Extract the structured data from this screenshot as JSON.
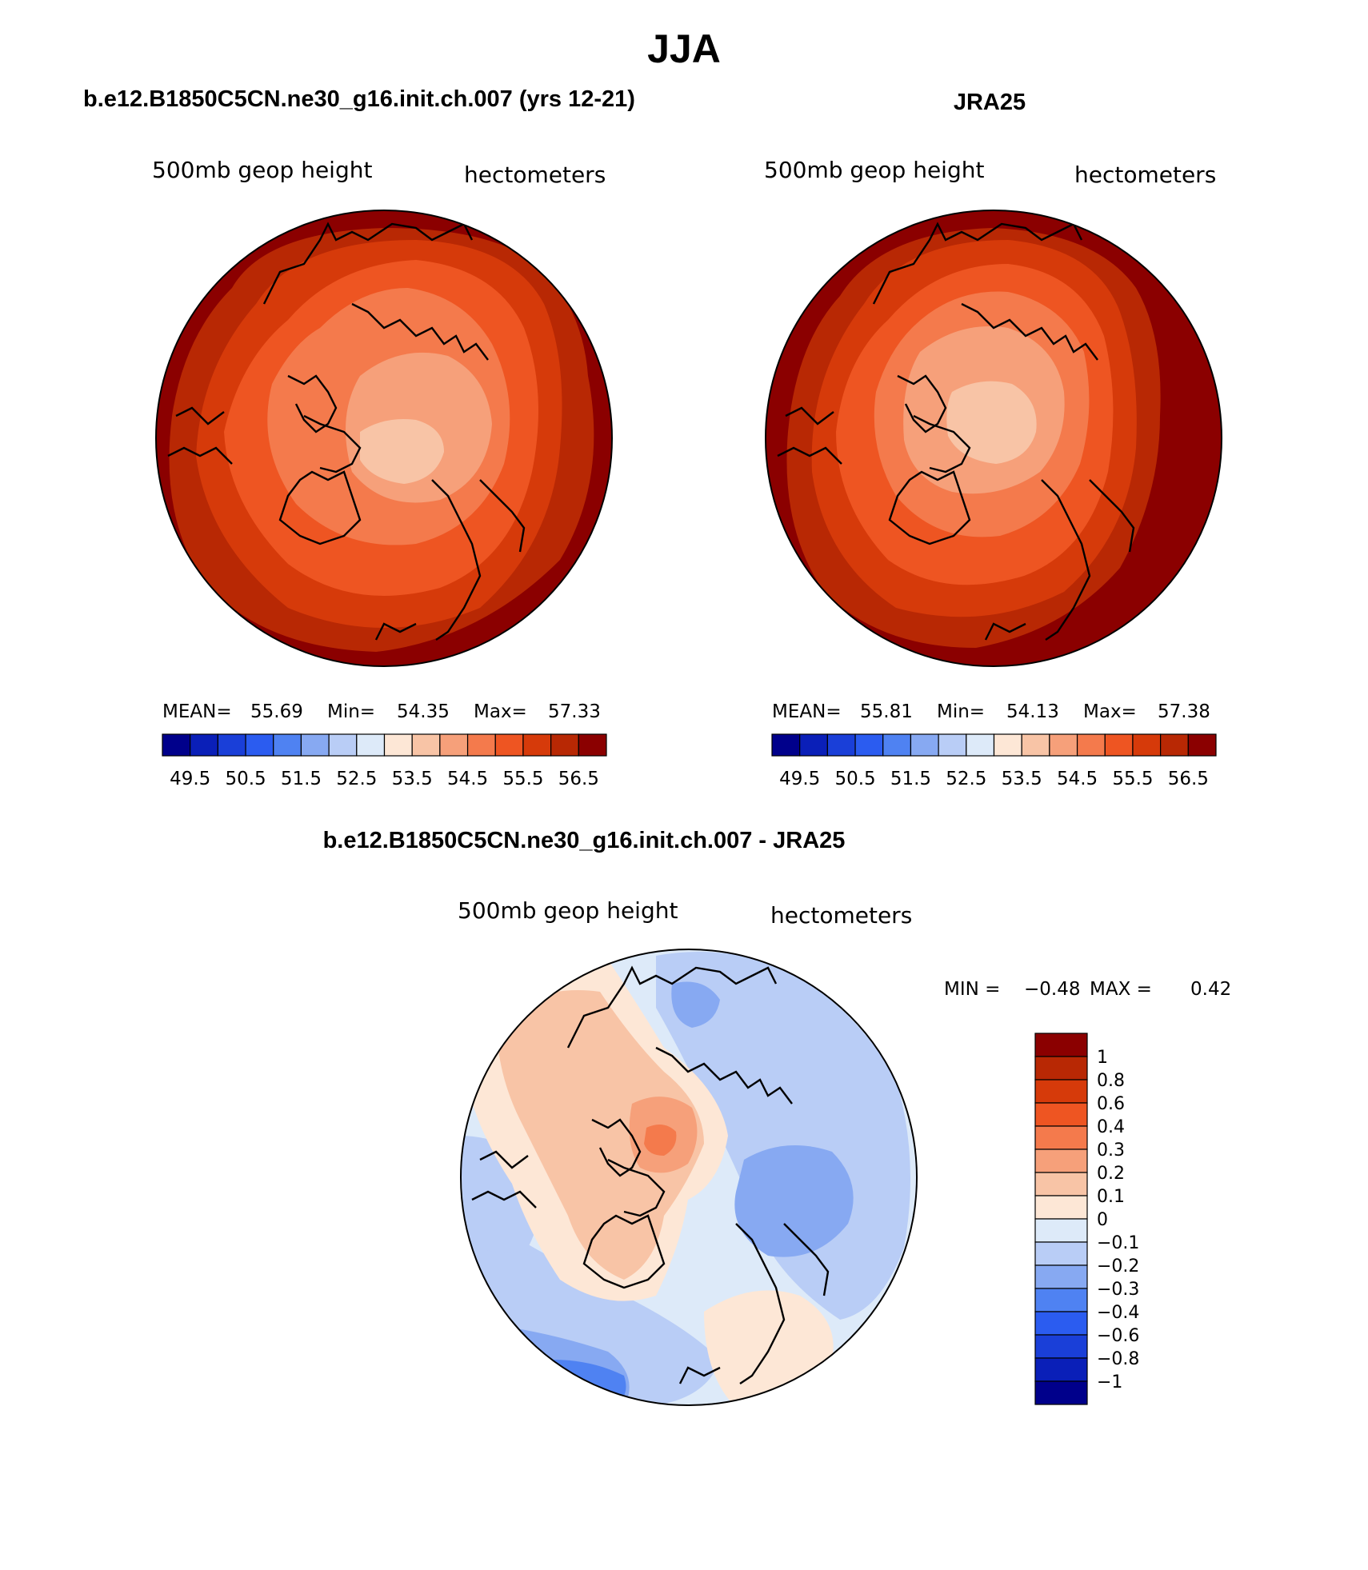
{
  "title": "JJA",
  "panels": [
    {
      "id": "model",
      "header": "b.e12.B1850C5CN.ne30_g16.init.ch.007 (yrs 12-21)",
      "variable": "500mb geop height",
      "units": "hectometers",
      "stats_text": {
        "mean_label": "MEAN=",
        "mean": "55.69",
        "min_label": "Min=",
        "min": "54.35",
        "max_label": "Max=",
        "max": "57.33"
      },
      "contour_levels": [
        53.5,
        54,
        54.5,
        55,
        55.5,
        56,
        56.5
      ]
    },
    {
      "id": "obs",
      "header": "JRA25",
      "variable": "500mb geop height",
      "units": "hectometers",
      "stats_text": {
        "mean_label": "MEAN=",
        "mean": "55.81",
        "min_label": "Min=",
        "min": "54.13",
        "max_label": "Max=",
        "max": "57.38"
      },
      "contour_levels": [
        53.5,
        54,
        54.5,
        55,
        55.5,
        56,
        56.5
      ]
    },
    {
      "id": "diff",
      "header": "b.e12.B1850C5CN.ne30_g16.init.ch.007 - JRA25",
      "variable": "500mb geop height",
      "units": "hectometers",
      "stats_text": {
        "min_label": "MIN =",
        "min": "−0.48",
        "max_label": "MAX =",
        "max": "0.42"
      }
    }
  ],
  "colorbar_abs": {
    "tick_labels": [
      "49.5",
      "50.5",
      "51.5",
      "52.5",
      "53.5",
      "54.5",
      "55.5",
      "56.5"
    ],
    "colors": [
      "#00008b",
      "#0a1fb8",
      "#1a3fd8",
      "#2b5cf0",
      "#4f82f2",
      "#87a9f2",
      "#b9cdf6",
      "#ddeaf9",
      "#fde7d6",
      "#f8c4a6",
      "#f6a07a",
      "#f47a4c",
      "#ee5522",
      "#d63a0a",
      "#b82804",
      "#8b0000"
    ]
  },
  "colorbar_diff": {
    "tick_labels": [
      "1",
      "0.8",
      "0.6",
      "0.4",
      "0.3",
      "0.2",
      "0.1",
      "0",
      "−0.1",
      "−0.2",
      "−0.3",
      "−0.4",
      "−0.6",
      "−0.8",
      "−1"
    ],
    "colors": [
      "#8b0000",
      "#b82804",
      "#d63a0a",
      "#ee5522",
      "#f47a4c",
      "#f6a07a",
      "#f8c4a6",
      "#fde7d6",
      "#ddeaf9",
      "#b9cdf6",
      "#87a9f2",
      "#4f82f2",
      "#2b5cf0",
      "#1a3fd8",
      "#0a1fb8",
      "#00008b"
    ]
  }
}
